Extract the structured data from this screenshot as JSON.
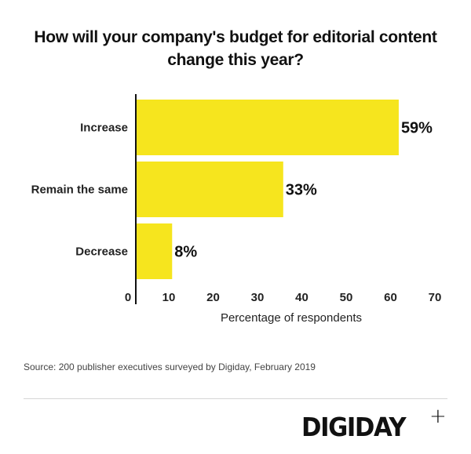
{
  "title": "How will your company's budget for editorial content change this year?",
  "source": "Source: 200 publisher executives surveyed by Digiday, February 2019",
  "logo": {
    "text": "DIGIDAY",
    "suffix": "+"
  },
  "colors": {
    "bar": "#F6E51E",
    "axis": "#111111",
    "text": "#111111"
  },
  "chart_data": {
    "type": "bar",
    "orientation": "horizontal",
    "title": "How will your company's budget for editorial content change this year?",
    "categories": [
      "Increase",
      "Remain the same",
      "Decrease"
    ],
    "values": [
      59,
      33,
      8
    ],
    "data_labels": [
      "59%",
      "33%",
      "8%"
    ],
    "xlabel": "Percentage of respondents",
    "ylabel": "",
    "xlim": [
      0,
      70
    ],
    "xticks": [
      0,
      10,
      20,
      30,
      40,
      50,
      60,
      70
    ],
    "xtick_labels": [
      "0",
      "10",
      "20",
      "30",
      "40",
      "50",
      "60",
      "70"
    ],
    "grid": false,
    "legend": "none"
  }
}
